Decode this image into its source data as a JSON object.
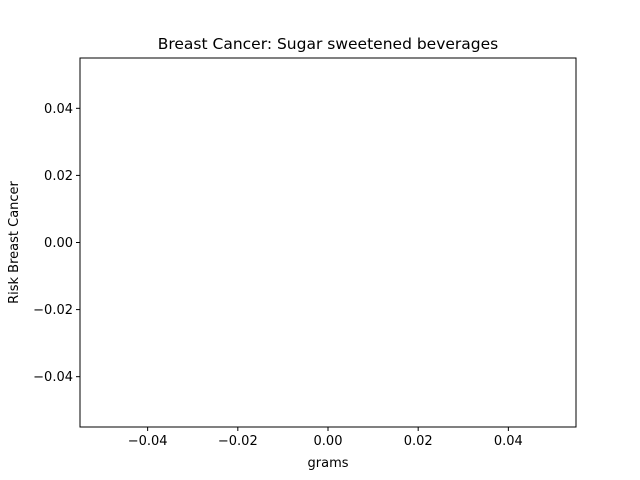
{
  "chart_data": {
    "type": "line",
    "title": "Breast Cancer: Sugar sweetened beverages",
    "xlabel": "grams",
    "ylabel": "Risk Breast Cancer",
    "xlim": [
      -0.055,
      0.055
    ],
    "ylim": [
      -0.055,
      0.055
    ],
    "xticks": [
      -0.04,
      -0.02,
      0.0,
      0.02,
      0.04
    ],
    "xtick_labels": [
      "−0.04",
      "−0.02",
      "0.00",
      "0.02",
      "0.04"
    ],
    "yticks": [
      -0.04,
      -0.02,
      0.0,
      0.02,
      0.04
    ],
    "ytick_labels": [
      "−0.04",
      "−0.02",
      "0.00",
      "0.02",
      "0.04"
    ],
    "series": [],
    "grid": false,
    "legend": "none"
  }
}
